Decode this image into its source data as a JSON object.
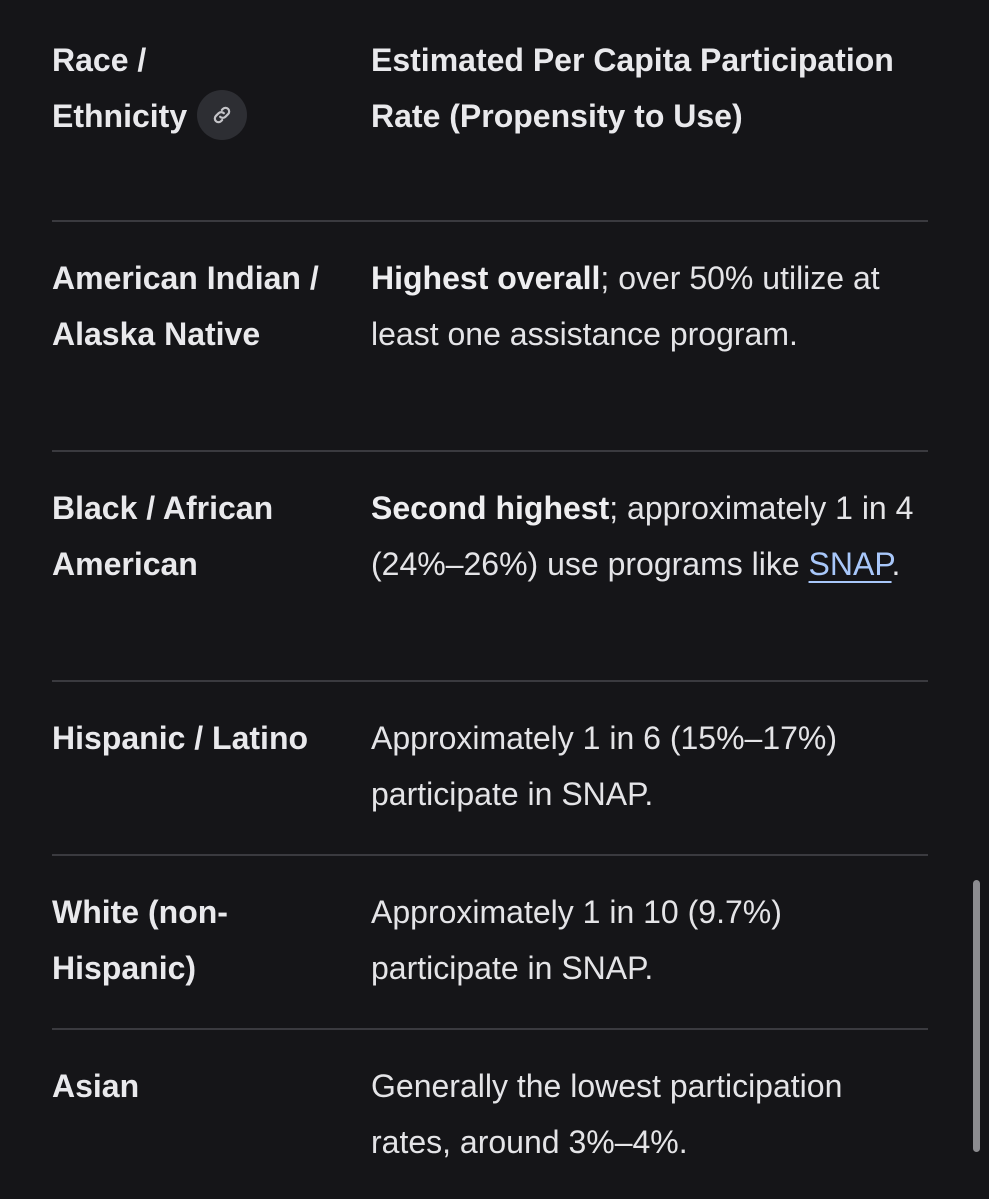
{
  "table": {
    "headers": {
      "col1_line1": "Race /",
      "col1_line2": "Ethnicity",
      "col2": "Estimated Per Capita Participation Rate (Propensity to Use)",
      "anchor_icon": "link-icon"
    },
    "rows": [
      {
        "group": "American Indian / Alaska Native",
        "bold": "Highest overall",
        "text": "; over 50% utilize at least one assistance program."
      },
      {
        "group": "Black / African American",
        "bold": "Second highest",
        "text": "; approximately 1 in 4 (24%–26%) use programs like ",
        "link": "SNAP",
        "after": "."
      },
      {
        "group": "Hispanic / Latino",
        "text": "Approximately 1 in 6 (15%–17%) participate in SNAP."
      },
      {
        "group": "White (non-Hispanic)",
        "text": "Approximately 1 in 10 (9.7%) participate in SNAP."
      },
      {
        "group": "Asian",
        "text": "Generally the lowest participation rates, around 3%–4%."
      }
    ]
  },
  "colors": {
    "background": "#151518",
    "text": "#e9e9ec",
    "link": "#a8c7fa",
    "divider": "#3a3a3f"
  }
}
